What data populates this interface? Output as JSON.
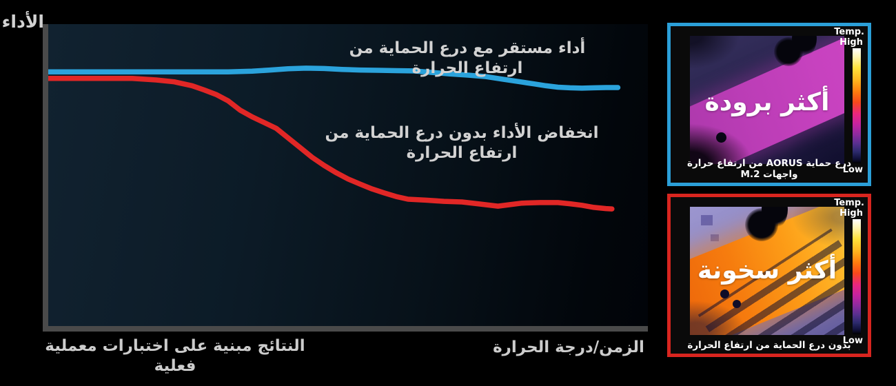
{
  "chart": {
    "y_axis_label": "الأداء",
    "x_axis_label": "الزمن/درجة الحرارة",
    "footnote": "النتائج مبنية على اختبارات معملية فعلية",
    "annotation_with_shield": "أداء مستقر مع درع الحماية من ارتفاع الحرارة",
    "annotation_without_shield": "انخفاض الأداء بدون درع الحماية من ارتفاع الحرارة"
  },
  "chart_data": {
    "type": "line",
    "title": "",
    "xlabel": "الزمن/درجة الحرارة",
    "ylabel": "الأداء",
    "xlim": [
      0,
      100
    ],
    "ylim": [
      0,
      100
    ],
    "grid": false,
    "legend_position": "inline-annotations",
    "annotations": [
      "أداء مستقر مع درع الحماية من ارتفاع الحرارة",
      "انخفاض الأداء بدون درع الحماية من ارتفاع الحرارة"
    ],
    "footnote": "النتائج مبنية على اختبارات معملية فعلية",
    "series": [
      {
        "name": "أداء مستقر مع درع الحماية من ارتفاع الحرارة",
        "color": "#2ba3dc",
        "points": [
          [
            0,
            84.2
          ],
          [
            5,
            84.2
          ],
          [
            10,
            84.2
          ],
          [
            15,
            84.2
          ],
          [
            20,
            84.2
          ],
          [
            25,
            84.2
          ],
          [
            30,
            84.2
          ],
          [
            34,
            84.4
          ],
          [
            37,
            84.8
          ],
          [
            40,
            85.2
          ],
          [
            43,
            85.4
          ],
          [
            46,
            85.3
          ],
          [
            49,
            85.0
          ],
          [
            52,
            84.8
          ],
          [
            55,
            84.7
          ],
          [
            58,
            84.6
          ],
          [
            61,
            84.5
          ],
          [
            64,
            84.0
          ],
          [
            67,
            83.5
          ],
          [
            70,
            83.1
          ],
          [
            73,
            82.6
          ],
          [
            76,
            81.7
          ],
          [
            79,
            80.8
          ],
          [
            81,
            80.2
          ],
          [
            83,
            79.6
          ],
          [
            85,
            79.1
          ],
          [
            87,
            78.9
          ],
          [
            89,
            78.8
          ],
          [
            91,
            78.9
          ],
          [
            93,
            79.0
          ],
          [
            95,
            79.0
          ]
        ]
      },
      {
        "name": "انخفاض الأداء بدون درع الحماية من ارتفاع الحرارة",
        "color": "#e12726",
        "points": [
          [
            0,
            82.0
          ],
          [
            8,
            82.0
          ],
          [
            14,
            82.0
          ],
          [
            18,
            81.5
          ],
          [
            21,
            80.9
          ],
          [
            24,
            79.6
          ],
          [
            26,
            78.2
          ],
          [
            28,
            76.7
          ],
          [
            30,
            74.6
          ],
          [
            32,
            71.5
          ],
          [
            34,
            69.3
          ],
          [
            36,
            67.4
          ],
          [
            38,
            65.5
          ],
          [
            40,
            62.3
          ],
          [
            42,
            59.1
          ],
          [
            44,
            55.9
          ],
          [
            46,
            53.2
          ],
          [
            48,
            50.8
          ],
          [
            50,
            48.7
          ],
          [
            52,
            47.0
          ],
          [
            54,
            45.4
          ],
          [
            56,
            44.1
          ],
          [
            58,
            42.9
          ],
          [
            60,
            42.0
          ],
          [
            63,
            41.7
          ],
          [
            66,
            41.3
          ],
          [
            69,
            41.1
          ],
          [
            72,
            40.4
          ],
          [
            75,
            39.7
          ],
          [
            77,
            40.2
          ],
          [
            79,
            40.7
          ],
          [
            82,
            40.9
          ],
          [
            85,
            40.9
          ],
          [
            87,
            40.5
          ],
          [
            89,
            40.0
          ],
          [
            91,
            39.3
          ],
          [
            93,
            38.9
          ],
          [
            94,
            38.8
          ]
        ]
      }
    ]
  },
  "panels": {
    "cooler": {
      "border_color": "#2b9fd8",
      "overlay_text": "أكثر برودة",
      "caption": "درع حماية AORUS من ارتفاع حرارة واجهات M.2",
      "colorbar": {
        "title": "Temp.",
        "high": "High",
        "low": "Low"
      }
    },
    "hotter": {
      "border_color": "#d8251f",
      "overlay_text": "أكثر سخونة",
      "caption": "بدون درع الحماية من ارتفاع الحرارة",
      "colorbar": {
        "title": "Temp.",
        "high": "High",
        "low": "Low"
      }
    }
  }
}
